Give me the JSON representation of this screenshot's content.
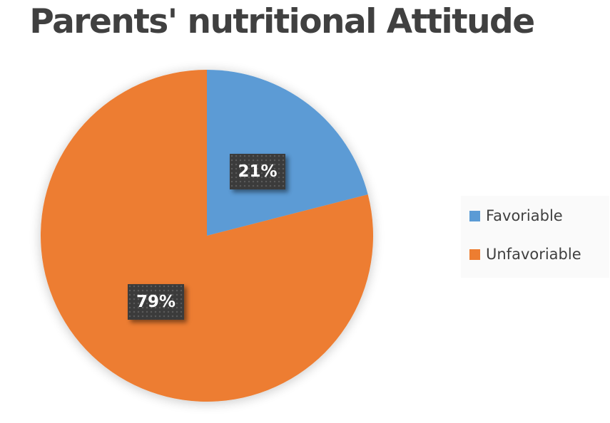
{
  "chart_data": {
    "type": "pie",
    "title": "Parents' nutritional Attitude",
    "categories": [
      "Favoriable",
      "Unfavoriable"
    ],
    "values": [
      21,
      79
    ],
    "labels": [
      "21%",
      "79%"
    ],
    "colors": [
      "#5b9bd5",
      "#ed7d31"
    ],
    "start_angle": "12 o'clock, clockwise",
    "legend_position": "right",
    "data_labels": "inside, dark boxes with white bold text"
  },
  "title": "Parents' nutritional Attitude",
  "slices": [
    {
      "name": "Favoriable",
      "value": 21,
      "label": "21%",
      "color": "#5b9bd5"
    },
    {
      "name": "Unfavoriable",
      "value": 79,
      "label": "79%",
      "color": "#ed7d31"
    }
  ],
  "legend": {
    "items": [
      {
        "label": "Favoriable",
        "color": "#5b9bd5"
      },
      {
        "label": "Unfavoriable",
        "color": "#ed7d31"
      }
    ]
  }
}
